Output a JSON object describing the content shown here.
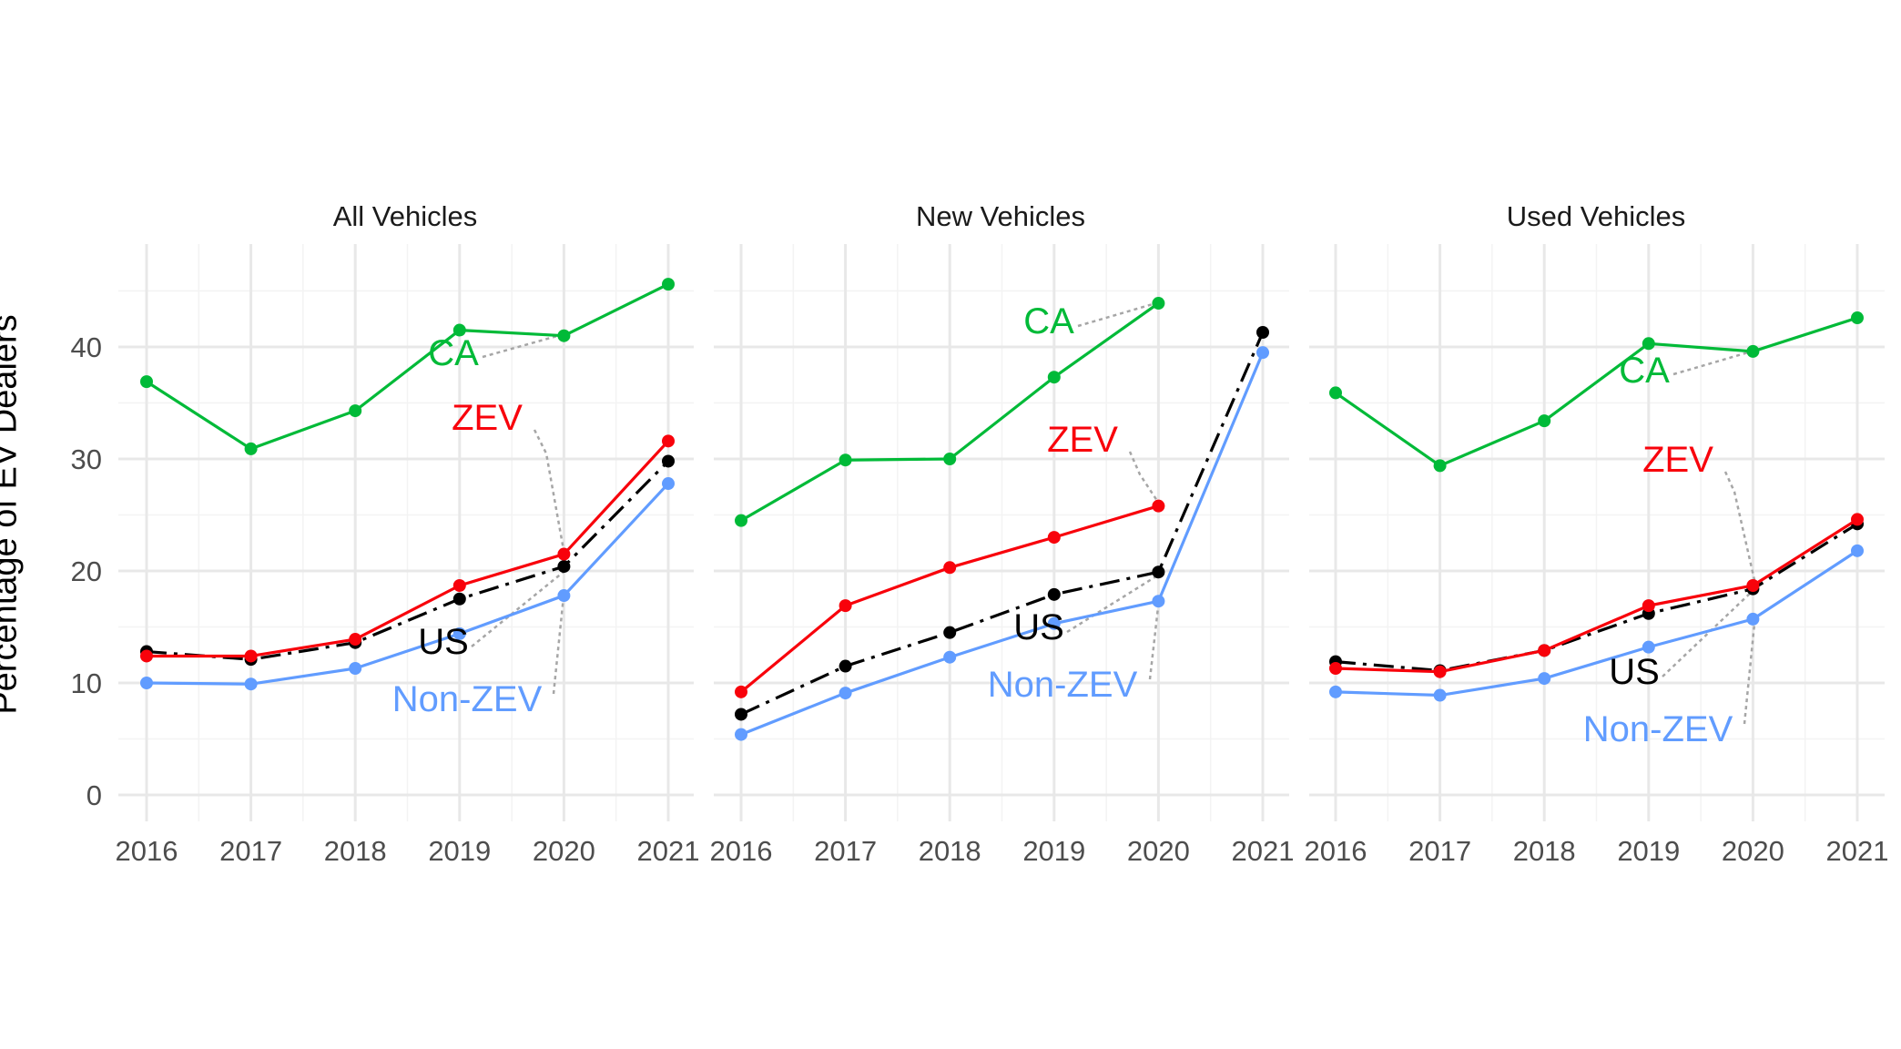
{
  "chart_data": {
    "type": "line",
    "ylabel": "Percentage of EV Dealers",
    "ylim": [
      0,
      46
    ],
    "y_ticks": [
      0,
      10,
      20,
      30,
      40
    ],
    "x": [
      "2016",
      "2017",
      "2018",
      "2019",
      "2020",
      "2021"
    ],
    "grid": true,
    "legend": "direct labels",
    "colors": {
      "CA": "#00ba38",
      "ZEV": "#f8020b",
      "US": "#000000",
      "Non-ZEV": "#619cff",
      "leader": "#a6a6a6"
    },
    "panels": [
      {
        "title": "All Vehicles",
        "series": [
          {
            "name": "CA",
            "values": [
              36.9,
              30.9,
              34.3,
              41.5,
              41.0,
              45.6
            ]
          },
          {
            "name": "ZEV",
            "values": [
              12.4,
              12.4,
              13.9,
              18.7,
              21.5,
              31.6
            ]
          },
          {
            "name": "US",
            "values": [
              12.8,
              12.1,
              13.6,
              17.5,
              20.4,
              29.8
            ]
          },
          {
            "name": "Non-ZEV",
            "values": [
              10.0,
              9.9,
              11.3,
              14.4,
              17.8,
              27.8
            ]
          }
        ]
      },
      {
        "title": "New Vehicles",
        "series": [
          {
            "name": "CA",
            "values": [
              24.5,
              29.9,
              30.0,
              37.3,
              43.9,
              null
            ]
          },
          {
            "name": "ZEV",
            "values": [
              9.2,
              16.9,
              20.3,
              23.0,
              25.8,
              null
            ]
          },
          {
            "name": "US",
            "values": [
              7.2,
              11.5,
              14.5,
              17.9,
              19.9,
              41.3
            ]
          },
          {
            "name": "Non-ZEV",
            "values": [
              5.4,
              9.1,
              12.3,
              15.3,
              17.3,
              39.5
            ]
          }
        ]
      },
      {
        "title": "Used Vehicles",
        "series": [
          {
            "name": "CA",
            "values": [
              35.9,
              29.4,
              33.4,
              40.3,
              39.6,
              42.6
            ]
          },
          {
            "name": "ZEV",
            "values": [
              11.3,
              11.0,
              12.9,
              16.9,
              18.7,
              24.6
            ]
          },
          {
            "name": "US",
            "values": [
              11.9,
              11.1,
              12.9,
              16.2,
              18.4,
              24.2
            ]
          },
          {
            "name": "Non-ZEV",
            "values": [
              9.2,
              8.9,
              10.4,
              13.2,
              15.7,
              21.8
            ]
          }
        ]
      }
    ]
  }
}
